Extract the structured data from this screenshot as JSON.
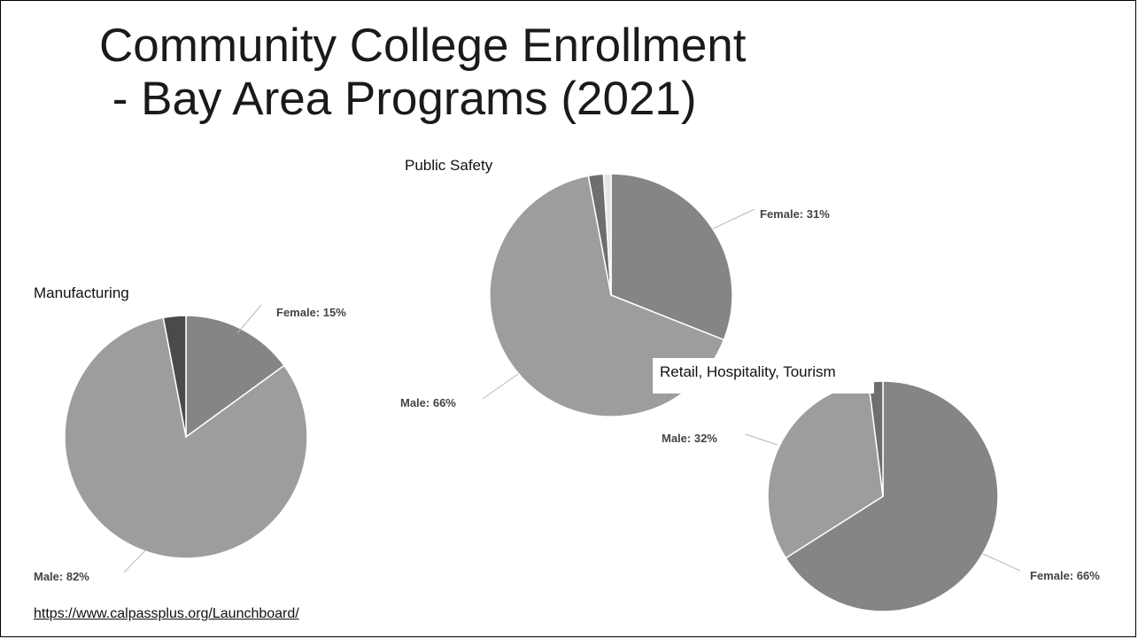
{
  "slide": {
    "title_line1": "Community College Enrollment",
    "title_line2": " - Bay Area Programs (2021)",
    "source_link": "https://www.calpassplus.org/Launchboard/"
  },
  "colors": {
    "female": "#858585",
    "male": "#9d9d9d",
    "other_dark": "#4a4a4a",
    "other_mid": "#6e6e6e",
    "other_light": "#e6e6e6"
  },
  "chart_data": [
    {
      "type": "pie",
      "title": "Manufacturing",
      "slices": [
        {
          "label": "Female: 15%",
          "value": 15,
          "color": "#858585"
        },
        {
          "label": "Male: 82%",
          "value": 82,
          "color": "#9d9d9d"
        },
        {
          "label": "",
          "value": 3,
          "color": "#4a4a4a"
        }
      ]
    },
    {
      "type": "pie",
      "title": "Public Safety",
      "slices": [
        {
          "label": "Female: 31%",
          "value": 31,
          "color": "#858585"
        },
        {
          "label": "Male: 66%",
          "value": 66,
          "color": "#9d9d9d"
        },
        {
          "label": "",
          "value": 2,
          "color": "#6e6e6e"
        },
        {
          "label": "",
          "value": 1,
          "color": "#e6e6e6"
        }
      ]
    },
    {
      "type": "pie",
      "title": "Retail, Hospitality, Tourism",
      "slices": [
        {
          "label": "Female: 66%",
          "value": 66,
          "color": "#858585"
        },
        {
          "label": "Male: 32%",
          "value": 32,
          "color": "#9d9d9d"
        },
        {
          "label": "",
          "value": 2,
          "color": "#6e6e6e"
        }
      ]
    }
  ]
}
